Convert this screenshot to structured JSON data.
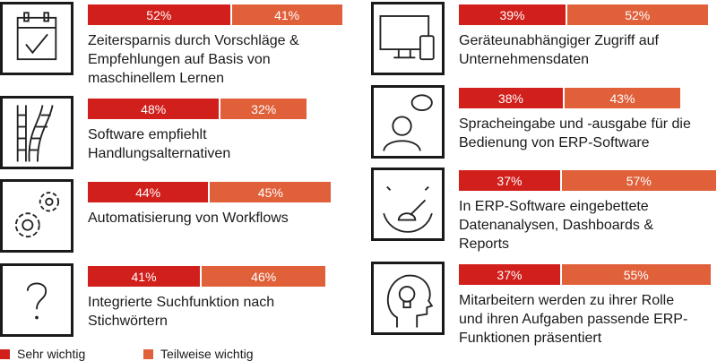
{
  "chart_data": {
    "type": "bar",
    "stacked": true,
    "orientation": "horizontal",
    "series": [
      {
        "name": "Sehr wichtig",
        "color": "#d11f1b"
      },
      {
        "name": "Teilweise wichtig",
        "color": "#e0603a"
      }
    ],
    "items": [
      {
        "label": "Zeitersparnis durch Vorschläge &\nEmpfehlungen auf Basis von\nmaschinellem Lernen",
        "icon": "calendar-check-icon",
        "values": [
          52,
          41
        ],
        "labels": [
          "52%",
          "41%"
        ]
      },
      {
        "label": "Software empfiehlt\nHandlungsalternativen",
        "icon": "branching-ladder-icon",
        "values": [
          48,
          32
        ],
        "labels": [
          "48%",
          "32%"
        ]
      },
      {
        "label": "Automatisierung von Workflows",
        "icon": "gears-icon",
        "values": [
          44,
          45
        ],
        "labels": [
          "44%",
          "45%"
        ]
      },
      {
        "label": "Integrierte Suchfunktion nach\nStichwörtern",
        "icon": "question-mark-icon",
        "values": [
          41,
          46
        ],
        "labels": [
          "41%",
          "46%"
        ]
      },
      {
        "label": "Geräteunabhängiger Zugriff auf\nUnternehmensdaten",
        "icon": "devices-icon",
        "values": [
          39,
          52
        ],
        "labels": [
          "39%",
          "52%"
        ]
      },
      {
        "label": "Spracheingabe und -ausgabe für die\nBedienung von ERP-Software",
        "icon": "speaking-person-icon",
        "values": [
          38,
          43
        ],
        "labels": [
          "38%",
          "43%"
        ]
      },
      {
        "label": "In ERP-Software eingebettete\nDatenanalysen, Dashboards &\nReports",
        "icon": "gauge-icon",
        "values": [
          37,
          57
        ],
        "labels": [
          "37%",
          "57%"
        ]
      },
      {
        "label": "Mitarbeitern werden zu ihrer Rolle\nund ihren Aufgaben passende ERP-\nFunktionen präsentiert",
        "icon": "head-lightbulb-icon",
        "values": [
          37,
          55
        ],
        "labels": [
          "37%",
          "55%"
        ]
      }
    ],
    "legend": {
      "placement": "bottom-left"
    }
  }
}
